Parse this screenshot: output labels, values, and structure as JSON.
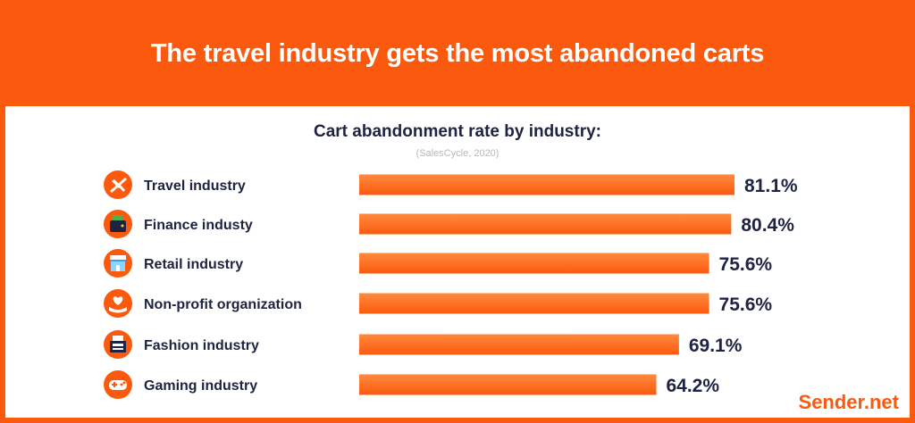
{
  "header": {
    "title": "The travel industry gets the most abandoned carts"
  },
  "subtitle": "Cart abandonment rate by industry:",
  "source": "(SalesCycle, 2020)",
  "brand": "Sender.net",
  "colors": {
    "accent": "#fb5a0e",
    "bar_light": "#ff8a3d",
    "text_dark": "#1e2341"
  },
  "chart_data": {
    "type": "bar",
    "orientation": "horizontal",
    "title": "Cart abandonment rate by industry:",
    "categories": [
      "Travel industry",
      "Finance industy",
      "Retail industry",
      "Non-profit organization",
      "Fashion industry",
      "Gaming industry"
    ],
    "values": [
      81.1,
      80.4,
      75.6,
      75.6,
      69.1,
      64.2
    ],
    "value_labels": [
      "81.1%",
      "80.4%",
      "75.6%",
      "75.6%",
      "69.1%",
      "64.2%"
    ],
    "icons": [
      "airplane-icon",
      "wallet-icon",
      "storefront-icon",
      "heart-hand-icon",
      "cash-register-icon",
      "gamepad-icon"
    ],
    "unit": "%",
    "xlim": [
      0,
      81.1
    ],
    "grid": false,
    "legend": "none"
  }
}
